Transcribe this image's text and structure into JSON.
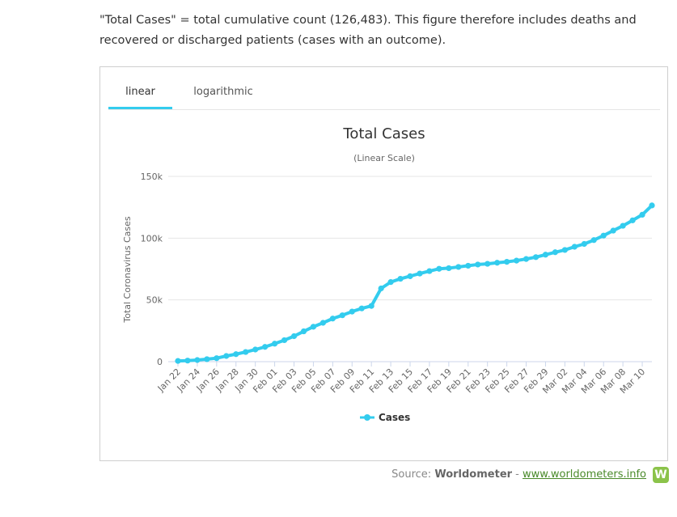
{
  "intro": {
    "line1": "\"Total Cases\" = total cumulative count (126,483). This figure therefore includes deaths and",
    "line2": "recovered or discharged patients (cases with an outcome)."
  },
  "tabs": [
    {
      "label": "linear",
      "active": true
    },
    {
      "label": "logarithmic",
      "active": false
    }
  ],
  "source": {
    "prefix": "Source: ",
    "name": "Worldometer",
    "separator": " - ",
    "link": "www.worldometers.info",
    "logo_letter": "W"
  },
  "colors": {
    "series": "#33ccee",
    "grid": "#e6e6e6",
    "axis": "#ccd6eb"
  },
  "chart_data": {
    "type": "line",
    "title": "Total Cases",
    "subtitle": "(Linear Scale)",
    "xlabel": "",
    "ylabel": "Total Coronavirus Cases",
    "ylim": [
      0,
      150000
    ],
    "yticks": [
      0,
      50000,
      100000,
      150000
    ],
    "ytick_labels": [
      "0",
      "50k",
      "100k",
      "150k"
    ],
    "grid": true,
    "legend": "bottom-center",
    "categories": [
      "Jan 22",
      "Jan 23",
      "Jan 24",
      "Jan 25",
      "Jan 26",
      "Jan 27",
      "Jan 28",
      "Jan 29",
      "Jan 30",
      "Jan 31",
      "Feb 01",
      "Feb 02",
      "Feb 03",
      "Feb 04",
      "Feb 05",
      "Feb 06",
      "Feb 07",
      "Feb 08",
      "Feb 09",
      "Feb 10",
      "Feb 11",
      "Feb 12",
      "Feb 13",
      "Feb 14",
      "Feb 15",
      "Feb 16",
      "Feb 17",
      "Feb 18",
      "Feb 19",
      "Feb 20",
      "Feb 21",
      "Feb 22",
      "Feb 23",
      "Feb 24",
      "Feb 25",
      "Feb 26",
      "Feb 27",
      "Feb 28",
      "Feb 29",
      "Mar 01",
      "Mar 02",
      "Mar 03",
      "Mar 04",
      "Mar 05",
      "Mar 06",
      "Mar 07",
      "Mar 08",
      "Mar 09",
      "Mar 10",
      "Mar 11"
    ],
    "xtick_labels": [
      "Jan 22",
      "Jan 24",
      "Jan 26",
      "Jan 28",
      "Jan 30",
      "Feb 01",
      "Feb 03",
      "Feb 05",
      "Feb 07",
      "Feb 09",
      "Feb 11",
      "Feb 13",
      "Feb 15",
      "Feb 17",
      "Feb 19",
      "Feb 21",
      "Feb 23",
      "Feb 25",
      "Feb 27",
      "Feb 29",
      "Mar 02",
      "Mar 04",
      "Mar 06",
      "Mar 08",
      "Mar 10"
    ],
    "series": [
      {
        "name": "Cases",
        "values": [
          580,
          845,
          1317,
          2015,
          2800,
          4581,
          6058,
          7813,
          9823,
          11950,
          14553,
          17391,
          20630,
          24545,
          28266,
          31439,
          34876,
          37552,
          40553,
          43099,
          45134,
          59287,
          64438,
          67100,
          69197,
          71329,
          73332,
          75184,
          75700,
          76677,
          77673,
          78651,
          79205,
          80087,
          80828,
          81820,
          83112,
          84615,
          86604,
          88585,
          90443,
          93016,
          95314,
          98425,
          102050,
          106099,
          109991,
          114381,
          118948,
          126483
        ]
      }
    ]
  }
}
